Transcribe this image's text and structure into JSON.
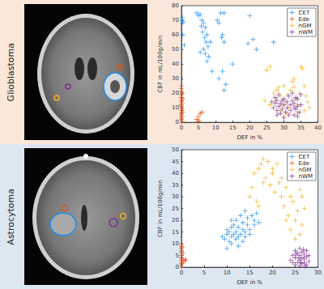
{
  "chart_data": [
    {
      "type": "scatter",
      "title": "Glioblastoma",
      "x_label": "OEF in %",
      "y_label": "CBF in mL/100g/min",
      "xlim": [
        0,
        40
      ],
      "xticks": [
        0,
        5,
        10,
        15,
        20,
        25,
        30,
        35,
        40
      ],
      "ylim": [
        0,
        80
      ],
      "yticks": [
        0,
        10,
        20,
        30,
        40,
        50,
        60,
        70,
        80
      ],
      "grid": false,
      "legend": "top-right",
      "marker": "plus",
      "series": [
        {
          "name": "CET",
          "color": "#1f8ceb",
          "x": [
            0.2,
            0.3,
            0.5,
            0.4,
            0.8,
            0.3,
            4.5,
            5,
            5.5,
            6,
            6.5,
            5.8,
            7,
            6.2,
            7.5,
            6.8,
            7.2,
            7.8,
            6.5,
            7,
            8,
            5.5,
            8.5,
            7.5,
            11.5,
            12.5,
            10.5,
            11,
            12,
            11.8,
            12.5,
            12,
            11,
            13,
            12.5,
            20,
            21,
            19.5,
            22,
            27,
            15,
            9
          ],
          "values": [
            70,
            68,
            69,
            60,
            53,
            72,
            75,
            73,
            74,
            70,
            68,
            66,
            65,
            62,
            60,
            58,
            55,
            52,
            50,
            47,
            45,
            48,
            55,
            42,
            75,
            75,
            70,
            68,
            60,
            58,
            55,
            35,
            30,
            26,
            22,
            73,
            57,
            54,
            50,
            55,
            40,
            35
          ]
        },
        {
          "name": "Ede",
          "color": "#d95319",
          "x": [
            0,
            0,
            0,
            0,
            0,
            0,
            0,
            0,
            0,
            0,
            0,
            0,
            0,
            0,
            0,
            0,
            0.2,
            0.2,
            0.3,
            0.3,
            0.2,
            0.4,
            0.3,
            4.5,
            5,
            5.5,
            6,
            4.8,
            5.2
          ],
          "values": [
            0,
            2,
            3,
            5,
            6,
            8,
            10,
            11,
            12,
            14,
            15,
            17,
            19,
            21,
            23,
            25,
            1,
            4,
            7,
            9,
            13,
            16,
            20,
            2,
            4,
            6,
            7,
            0.5,
            1
          ]
        },
        {
          "name": "nGM",
          "color": "#edb120",
          "x": [
            24.5,
            25,
            26,
            27,
            27.5,
            28,
            28.5,
            29,
            29.5,
            30,
            30.5,
            31,
            31.5,
            32,
            32.5,
            33,
            33.5,
            34,
            34.5,
            35,
            35.5,
            36,
            36.5,
            37,
            37.5,
            34,
            31,
            29,
            26,
            33,
            30,
            36
          ],
          "values": [
            15,
            36,
            38,
            20,
            15,
            22,
            24,
            18,
            12,
            25,
            14,
            19,
            10,
            22,
            28,
            30,
            16,
            12,
            20,
            38,
            37,
            25,
            18,
            14,
            10,
            6,
            6,
            8,
            12,
            24,
            4,
            8
          ]
        },
        {
          "name": "nWM",
          "color": "#7e2f8e",
          "x": [
            27,
            27.5,
            28,
            28,
            28.5,
            29,
            29,
            29.5,
            30,
            30,
            30.5,
            31,
            31,
            31.5,
            32,
            32,
            32.5,
            33,
            33,
            33,
            33.5,
            34,
            34,
            34.5,
            35,
            35,
            27.5,
            28.5,
            29.5,
            31.5,
            32.5,
            33.5,
            34,
            30,
            28,
            26.5
          ],
          "values": [
            10,
            13,
            8,
            15,
            11,
            6,
            13,
            9,
            12,
            16,
            7,
            10,
            14,
            18,
            8,
            12,
            15,
            5,
            10,
            13,
            9,
            11,
            16,
            7,
            12,
            19,
            17,
            19,
            15,
            5,
            20,
            17,
            4,
            3,
            5,
            14
          ]
        }
      ]
    },
    {
      "type": "scatter",
      "title": "Astrocytoma",
      "x_label": "OEF in %",
      "y_label": "CBF in mL/100g/min",
      "xlim": [
        0,
        30
      ],
      "xticks": [
        0,
        5,
        10,
        15,
        20,
        25,
        30
      ],
      "ylim": [
        0,
        50
      ],
      "yticks": [
        0,
        5,
        10,
        15,
        20,
        25,
        30,
        35,
        40,
        45,
        50
      ],
      "grid": false,
      "legend": "top-right",
      "marker": "plus",
      "series": [
        {
          "name": "CET",
          "color": "#1f8ceb",
          "x": [
            9,
            9.5,
            10,
            10,
            10.5,
            10.5,
            11,
            11,
            11,
            11.5,
            11.5,
            12,
            12,
            12,
            12.5,
            12.5,
            12.5,
            13,
            13,
            13.5,
            13.5,
            13.5,
            14,
            14,
            14,
            14.5,
            14.5,
            15,
            15,
            15.5,
            16,
            16,
            16.5,
            17,
            10,
            11
          ],
          "values": [
            13,
            12,
            14,
            16,
            11,
            15,
            13,
            17,
            10,
            14,
            18,
            12,
            15,
            20,
            9,
            13,
            17,
            14,
            22,
            11,
            16,
            19,
            13,
            15,
            24,
            18,
            21,
            14,
            16,
            22,
            20,
            18,
            23,
            19,
            8,
            20
          ]
        },
        {
          "name": "Ede",
          "color": "#d95319",
          "x": [
            0,
            0,
            0,
            0,
            0,
            0,
            0,
            0,
            0,
            0,
            0,
            0.2,
            0.3,
            0.5,
            0.8,
            1,
            0.4,
            0.2
          ],
          "values": [
            0,
            1,
            2,
            3,
            4,
            5,
            6,
            7,
            8,
            9,
            10,
            1.5,
            3.5,
            2.5,
            3,
            3.2,
            6,
            8.5
          ]
        },
        {
          "name": "nGM",
          "color": "#edb120",
          "x": [
            15,
            15.5,
            16,
            16.5,
            17,
            17.5,
            18,
            18.5,
            19,
            19.5,
            20,
            20.5,
            21,
            21.5,
            22,
            22.5,
            23,
            23.5,
            24,
            24.5,
            25,
            25.5,
            26,
            26.5,
            27,
            26,
            25,
            24,
            22,
            20,
            18,
            17,
            26.5,
            23
          ],
          "values": [
            30,
            34,
            40,
            28,
            42,
            44,
            46,
            38,
            45,
            35,
            40,
            32,
            44,
            36,
            30,
            26,
            34,
            22,
            30,
            28,
            20,
            24,
            33,
            18,
            25,
            14,
            12,
            16,
            38,
            42,
            36,
            26,
            30,
            20
          ]
        },
        {
          "name": "nWM",
          "color": "#7e2f8e",
          "x": [
            24,
            24.5,
            25,
            25,
            25,
            25.5,
            25.5,
            26,
            26,
            26,
            26,
            26.5,
            26.5,
            26.5,
            27,
            27,
            27,
            27.5,
            27.5,
            27.5,
            28,
            28,
            24.5,
            25.2,
            26.2,
            26.8,
            27.2,
            25.8
          ],
          "values": [
            3,
            5,
            1,
            4,
            7,
            2,
            6,
            0.5,
            3,
            5,
            8,
            1.5,
            4,
            6.5,
            2,
            3.5,
            5.5,
            1,
            4.5,
            7,
            2.5,
            5,
            2,
            5.5,
            2,
            7.5,
            0.5,
            3.8
          ]
        }
      ]
    }
  ]
}
